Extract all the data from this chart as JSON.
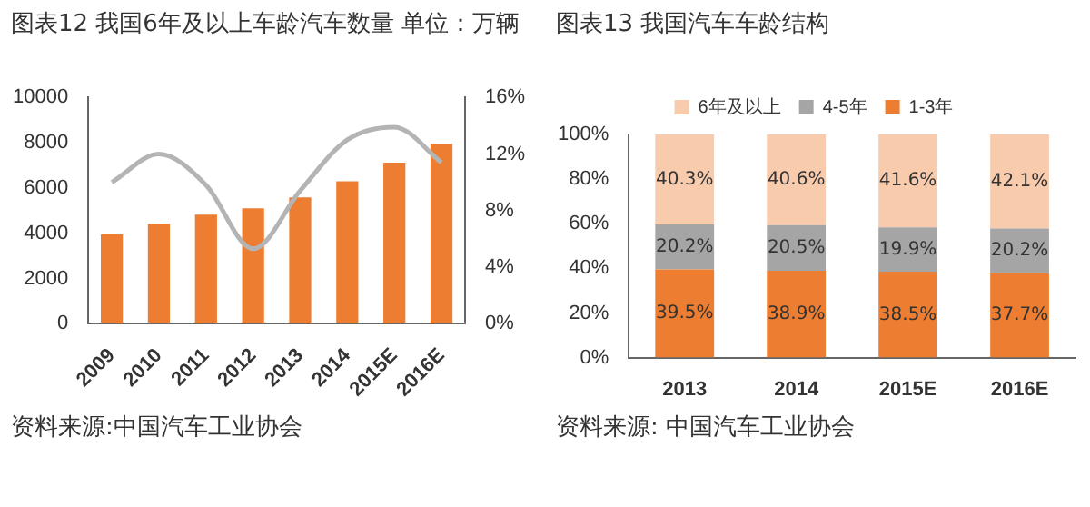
{
  "chart_data": [
    {
      "type": "bar",
      "title": "图表12 我国6年及以上车龄汽车数量 单位：万辆",
      "categories": [
        "2009",
        "2010",
        "2011",
        "2012",
        "2013",
        "2014",
        "2015E",
        "2016E"
      ],
      "series": [
        {
          "color": "#ed7d31",
          "values": [
            3950,
            4420,
            4820,
            5100,
            5580,
            6300,
            7120,
            7950
          ]
        },
        {
          "type": "line",
          "axis": "y2",
          "color": "#b4b4b4",
          "marker": "none",
          "values": [
            10.0,
            12.0,
            9.8,
            5.3,
            9.4,
            13.0,
            13.9,
            11.4
          ]
        }
      ],
      "ylim": [
        0,
        10000
      ],
      "yticks": [
        0,
        2000,
        4000,
        6000,
        8000,
        10000
      ],
      "y2lim": [
        0,
        16
      ],
      "y2ticks": [
        {
          "value": 0,
          "label": "0%"
        },
        {
          "value": 4,
          "label": "4%"
        },
        {
          "value": 8,
          "label": "8%"
        },
        {
          "value": 12,
          "label": "12%"
        },
        {
          "value": 16,
          "label": "16%"
        }
      ],
      "grid": false,
      "legend": false,
      "annotations": [
        "资料来源:中国汽车工业协会"
      ]
    },
    {
      "type": "bar",
      "title": "图表13 我国汽车车龄结构",
      "categories": [
        "2013",
        "2014",
        "2015E",
        "2016E"
      ],
      "stacked": true,
      "series": [
        {
          "name": "1-3年",
          "color": "#ed7d31",
          "values": [
            39.5,
            38.9,
            38.5,
            37.7
          ],
          "value_labels": [
            "39.5%",
            "38.9%",
            "38.5%",
            "37.7%"
          ]
        },
        {
          "name": "4-5年",
          "color": "#a5a5a5",
          "values": [
            20.2,
            20.5,
            19.9,
            20.2
          ],
          "value_labels": [
            "20.2%",
            "20.5%",
            "19.9%",
            "20.2%"
          ]
        },
        {
          "name": "6年及以上",
          "color": "#f8cbad",
          "values": [
            40.3,
            40.6,
            41.6,
            42.1
          ],
          "value_labels": [
            "40.3%",
            "40.6%",
            "41.6%",
            "42.1%"
          ]
        }
      ],
      "ylim": [
        0,
        100
      ],
      "yticks": [
        {
          "value": 0,
          "label": "0%"
        },
        {
          "value": 20,
          "label": "20%"
        },
        {
          "value": 40,
          "label": "40%"
        },
        {
          "value": 60,
          "label": "60%"
        },
        {
          "value": 80,
          "label": "80%"
        },
        {
          "value": 100,
          "label": "100%"
        }
      ],
      "grid": false,
      "legend": "top",
      "annotations": [
        "资料来源: 中国汽车工业协会"
      ]
    }
  ]
}
